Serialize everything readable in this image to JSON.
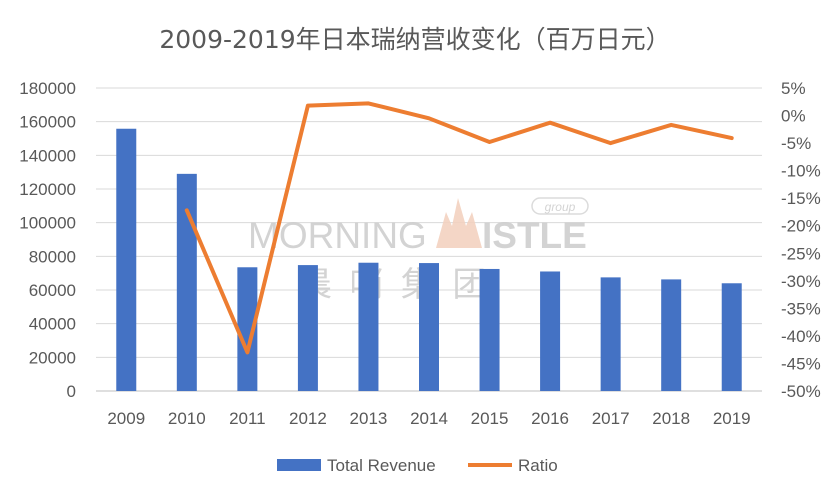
{
  "chart_data": {
    "type": "bar+line",
    "title": "2009-2019年日本瑞纳营收变化（百万日元）",
    "categories": [
      "2009",
      "2010",
      "2011",
      "2012",
      "2013",
      "2014",
      "2015",
      "2016",
      "2017",
      "2018",
      "2019"
    ],
    "series": [
      {
        "name": "Total Revenue",
        "type": "bar",
        "axis": "left",
        "color": "#4472C4",
        "values": [
          155800,
          129000,
          73500,
          74800,
          76200,
          76000,
          72500,
          71000,
          67500,
          66300,
          64000
        ]
      },
      {
        "name": "Ratio",
        "type": "line",
        "axis": "right",
        "color": "#ED7D31",
        "values": [
          null,
          -17.2,
          -43.0,
          1.8,
          2.2,
          -0.5,
          -4.8,
          -1.3,
          -5.0,
          -1.7,
          -4.1
        ]
      }
    ],
    "left_axis": {
      "ylim": [
        0,
        180000
      ],
      "ticks": [
        "0",
        "20000",
        "40000",
        "60000",
        "80000",
        "100000",
        "120000",
        "140000",
        "160000",
        "180000"
      ]
    },
    "right_axis": {
      "ylim": [
        -50,
        5
      ],
      "ticks": [
        "5%",
        "0%",
        "-5%",
        "-10%",
        "-15%",
        "-20%",
        "-25%",
        "-30%",
        "-35%",
        "-40%",
        "-45%",
        "-50%"
      ]
    },
    "grid": true,
    "legend_position": "bottom"
  },
  "watermark": {
    "text_left": "MORNING",
    "text_right": "ISTLE",
    "badge": "group",
    "chinese": "晨 哨 集 团"
  }
}
